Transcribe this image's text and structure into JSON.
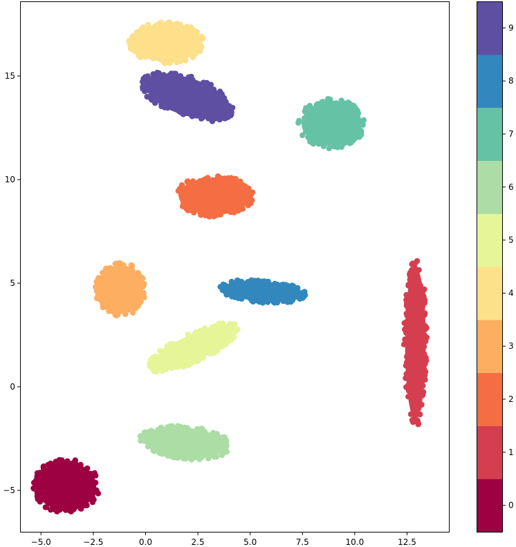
{
  "chart_data": {
    "type": "scatter",
    "title": "",
    "xlabel": "",
    "ylabel": "",
    "xlim": [
      -6.0,
      14.5
    ],
    "ylim": [
      -7.0,
      18.6
    ],
    "xticks": [
      -5.0,
      -2.5,
      0.0,
      2.5,
      5.0,
      7.5,
      10.0,
      12.5
    ],
    "xtick_labels": [
      "−5.0",
      "−2.5",
      "0.0",
      "2.5",
      "5.0",
      "7.5",
      "10.0",
      "12.5"
    ],
    "yticks": [
      -5,
      0,
      5,
      10,
      15
    ],
    "ytick_labels": [
      "−5",
      "0",
      "5",
      "10",
      "15"
    ],
    "grid": false,
    "legend": "none",
    "colorbar": {
      "min": -0.5,
      "max": 9.5,
      "ticks": [
        0,
        1,
        2,
        3,
        4,
        5,
        6,
        7,
        8,
        9
      ],
      "tick_labels": [
        "0",
        "1",
        "2",
        "3",
        "4",
        "5",
        "6",
        "7",
        "8",
        "9"
      ],
      "colors": [
        "#9e0142",
        "#d53e4f",
        "#f46d43",
        "#fdae61",
        "#fee08b",
        "#e6f598",
        "#abdda4",
        "#66c2a5",
        "#3288bd",
        "#5e4fa2"
      ]
    },
    "clusters": [
      {
        "label": 0,
        "color": "#9e0142",
        "cx": -3.8,
        "cy": -4.8,
        "rx": 1.6,
        "ry": 1.3,
        "rot": 0
      },
      {
        "label": 1,
        "color": "#d53e4f",
        "cx": 12.9,
        "cy": 2.1,
        "rx": 0.55,
        "ry": 4.1,
        "rot": 0
      },
      {
        "label": 2,
        "color": "#f46d43",
        "cx": 3.3,
        "cy": 9.2,
        "rx": 1.9,
        "ry": 1.0,
        "rot": 0
      },
      {
        "label": 3,
        "color": "#fdae61",
        "cx": -1.2,
        "cy": 4.7,
        "rx": 1.2,
        "ry": 1.3,
        "rot": 0
      },
      {
        "label": 4,
        "color": "#fee08b",
        "cx": 1.0,
        "cy": 16.6,
        "rx": 1.8,
        "ry": 1.0,
        "rot": 0
      },
      {
        "label": 5,
        "color": "#e6f598",
        "cx": 2.3,
        "cy": 1.9,
        "rx": 2.4,
        "ry": 0.7,
        "rot": -25
      },
      {
        "label": 6,
        "color": "#abdda4",
        "cx": 1.9,
        "cy": -2.7,
        "rx": 2.2,
        "ry": 0.8,
        "rot": 5
      },
      {
        "label": 7,
        "color": "#66c2a5",
        "cx": 8.9,
        "cy": 12.7,
        "rx": 1.6,
        "ry": 1.2,
        "rot": 0
      },
      {
        "label": 8,
        "color": "#3288bd",
        "cx": 5.6,
        "cy": 4.6,
        "rx": 2.1,
        "ry": 0.55,
        "rot": 5
      },
      {
        "label": 9,
        "color": "#5e4fa2",
        "cx": 2.0,
        "cy": 14.0,
        "rx": 2.3,
        "ry": 1.0,
        "rot": 18
      }
    ]
  }
}
